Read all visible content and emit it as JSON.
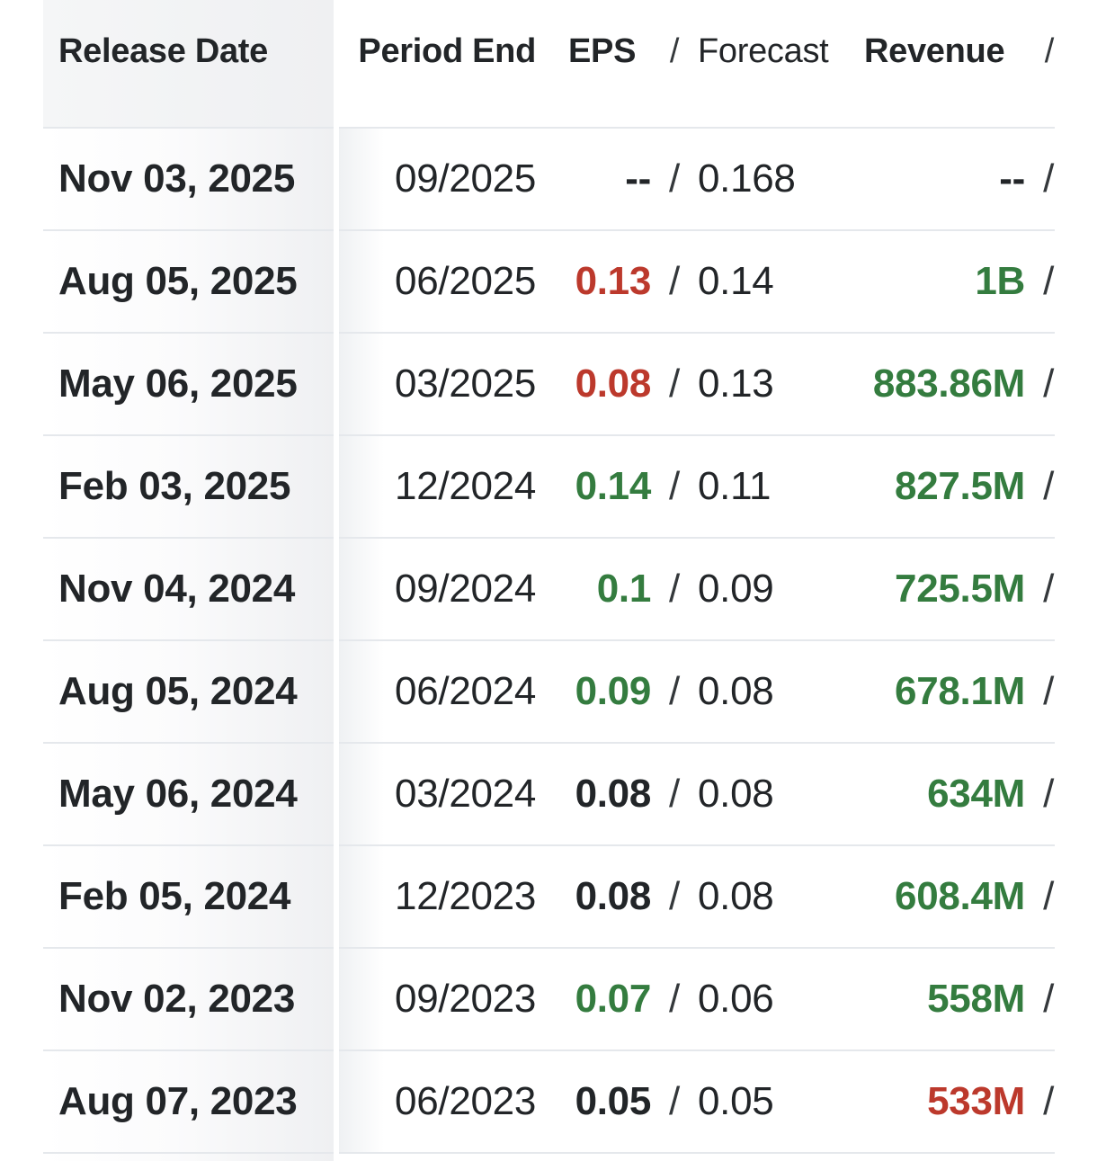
{
  "separator": "/",
  "colors": {
    "positive": "#347c3f",
    "negative": "#bc392c",
    "neutral_text": "#222528",
    "divider": "#e5e8ec"
  },
  "header": {
    "release_date": "Release Date",
    "period_end": "Period End",
    "eps": "EPS",
    "eps_slash": "/",
    "forecast": "Forecast",
    "revenue": "Revenue",
    "revenue_slash": "/"
  },
  "rows": [
    {
      "release_date": "Nov 03, 2025",
      "period_end": "09/2025",
      "eps": "--",
      "eps_color": "neutral",
      "forecast": "0.168",
      "revenue": "--",
      "revenue_color": "neutral"
    },
    {
      "release_date": "Aug 05, 2025",
      "period_end": "06/2025",
      "eps": "0.13",
      "eps_color": "red",
      "forecast": "0.14",
      "revenue": "1B",
      "revenue_color": "green"
    },
    {
      "release_date": "May 06, 2025",
      "period_end": "03/2025",
      "eps": "0.08",
      "eps_color": "red",
      "forecast": "0.13",
      "revenue": "883.86M",
      "revenue_color": "green"
    },
    {
      "release_date": "Feb 03, 2025",
      "period_end": "12/2024",
      "eps": "0.14",
      "eps_color": "green",
      "forecast": "0.11",
      "revenue": "827.5M",
      "revenue_color": "green"
    },
    {
      "release_date": "Nov 04, 2024",
      "period_end": "09/2024",
      "eps": "0.1",
      "eps_color": "green",
      "forecast": "0.09",
      "revenue": "725.5M",
      "revenue_color": "green"
    },
    {
      "release_date": "Aug 05, 2024",
      "period_end": "06/2024",
      "eps": "0.09",
      "eps_color": "green",
      "forecast": "0.08",
      "revenue": "678.1M",
      "revenue_color": "green"
    },
    {
      "release_date": "May 06, 2024",
      "period_end": "03/2024",
      "eps": "0.08",
      "eps_color": "neutral",
      "forecast": "0.08",
      "revenue": "634M",
      "revenue_color": "green"
    },
    {
      "release_date": "Feb 05, 2024",
      "period_end": "12/2023",
      "eps": "0.08",
      "eps_color": "neutral",
      "forecast": "0.08",
      "revenue": "608.4M",
      "revenue_color": "green"
    },
    {
      "release_date": "Nov 02, 2023",
      "period_end": "09/2023",
      "eps": "0.07",
      "eps_color": "green",
      "forecast": "0.06",
      "revenue": "558M",
      "revenue_color": "green"
    },
    {
      "release_date": "Aug 07, 2023",
      "period_end": "06/2023",
      "eps": "0.05",
      "eps_color": "neutral",
      "forecast": "0.05",
      "revenue": "533M",
      "revenue_color": "red"
    }
  ]
}
